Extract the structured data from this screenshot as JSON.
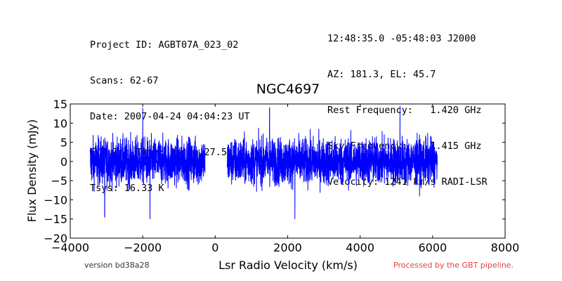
{
  "header_left": [
    "Project ID: AGBT07A_023_02",
    "Scans: 62-67",
    "Date: 2007-04-24 04:04:23 UT",
    "Eff Int Time: 0h 7m 27.5s",
    "Tsys: 16.33 K"
  ],
  "header_right": [
    "12:48:35.0 -05:48:03 J2000",
    "AZ: 181.3, EL: 45.7",
    "Rest Frequency:   1.420 GHz",
    "Sky Frequency:    1.415 GHz",
    "Velocity: 1241 km/s RADI-LSR"
  ],
  "footer": {
    "version": "version bd38a28",
    "processed": "Processed by the GBT pipeline."
  },
  "colors": {
    "series": "#0000ff",
    "processed_text": "#e84040"
  },
  "chart_data": {
    "type": "line",
    "title": "NGC4697",
    "xlabel": "Lsr Radio Velocity (km/s)",
    "ylabel": "Flux Density (mJy)",
    "xlim": [
      -4000,
      8000
    ],
    "ylim": [
      -20,
      15
    ],
    "xticks": [
      -4000,
      -2000,
      0,
      2000,
      4000,
      6000,
      8000
    ],
    "yticks": [
      -20,
      -15,
      -10,
      -5,
      0,
      5,
      10,
      15
    ],
    "grid": false,
    "series": [
      {
        "segments": [
          {
            "x_range": [
              -3450,
              -280
            ],
            "noise_rms": 3.0
          },
          {
            "x_range": [
              330,
              6130
            ],
            "noise_rms": 3.0
          }
        ],
        "features": [
          {
            "x": -3050,
            "y": -14.5
          },
          {
            "x": -2000,
            "y": 14
          },
          {
            "x": -1800,
            "y": -15
          },
          {
            "x": 1500,
            "y": 14
          },
          {
            "x": 2200,
            "y": -15
          },
          {
            "x": 5100,
            "y": 14.5
          }
        ]
      }
    ]
  }
}
